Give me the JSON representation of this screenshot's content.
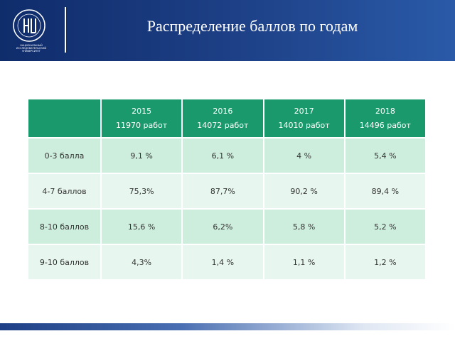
{
  "header": {
    "title": "Распределение баллов по годам",
    "logo_caption": "НАЦИОНАЛЬНЫЙ ИССЛЕДОВАТЕЛЬСКИЙ УНИВЕРСИТЕТ"
  },
  "table": {
    "columns": [
      {
        "year": "2015",
        "works": "11970 работ"
      },
      {
        "year": "2016",
        "works": "14072 работ"
      },
      {
        "year": "2017",
        "works": "14010 работ"
      },
      {
        "year": "2018",
        "works": "14496 работ"
      }
    ],
    "rows": [
      {
        "label": "0-3 балла",
        "cells": [
          "9,1 %",
          "6,1 %",
          "4 %",
          "5,4 %"
        ]
      },
      {
        "label": "4-7 баллов",
        "cells": [
          "75,3%",
          "87,7%",
          "90,2 %",
          "89,4 %"
        ]
      },
      {
        "label": "8-10 баллов",
        "cells": [
          "15,6 %",
          "6,2%",
          "5,8 %",
          "5,2 %"
        ]
      },
      {
        "label": "9-10 баллов",
        "cells": [
          "4,3%",
          "1,4 %",
          "1,1 %",
          "1,2 %"
        ]
      }
    ]
  }
}
